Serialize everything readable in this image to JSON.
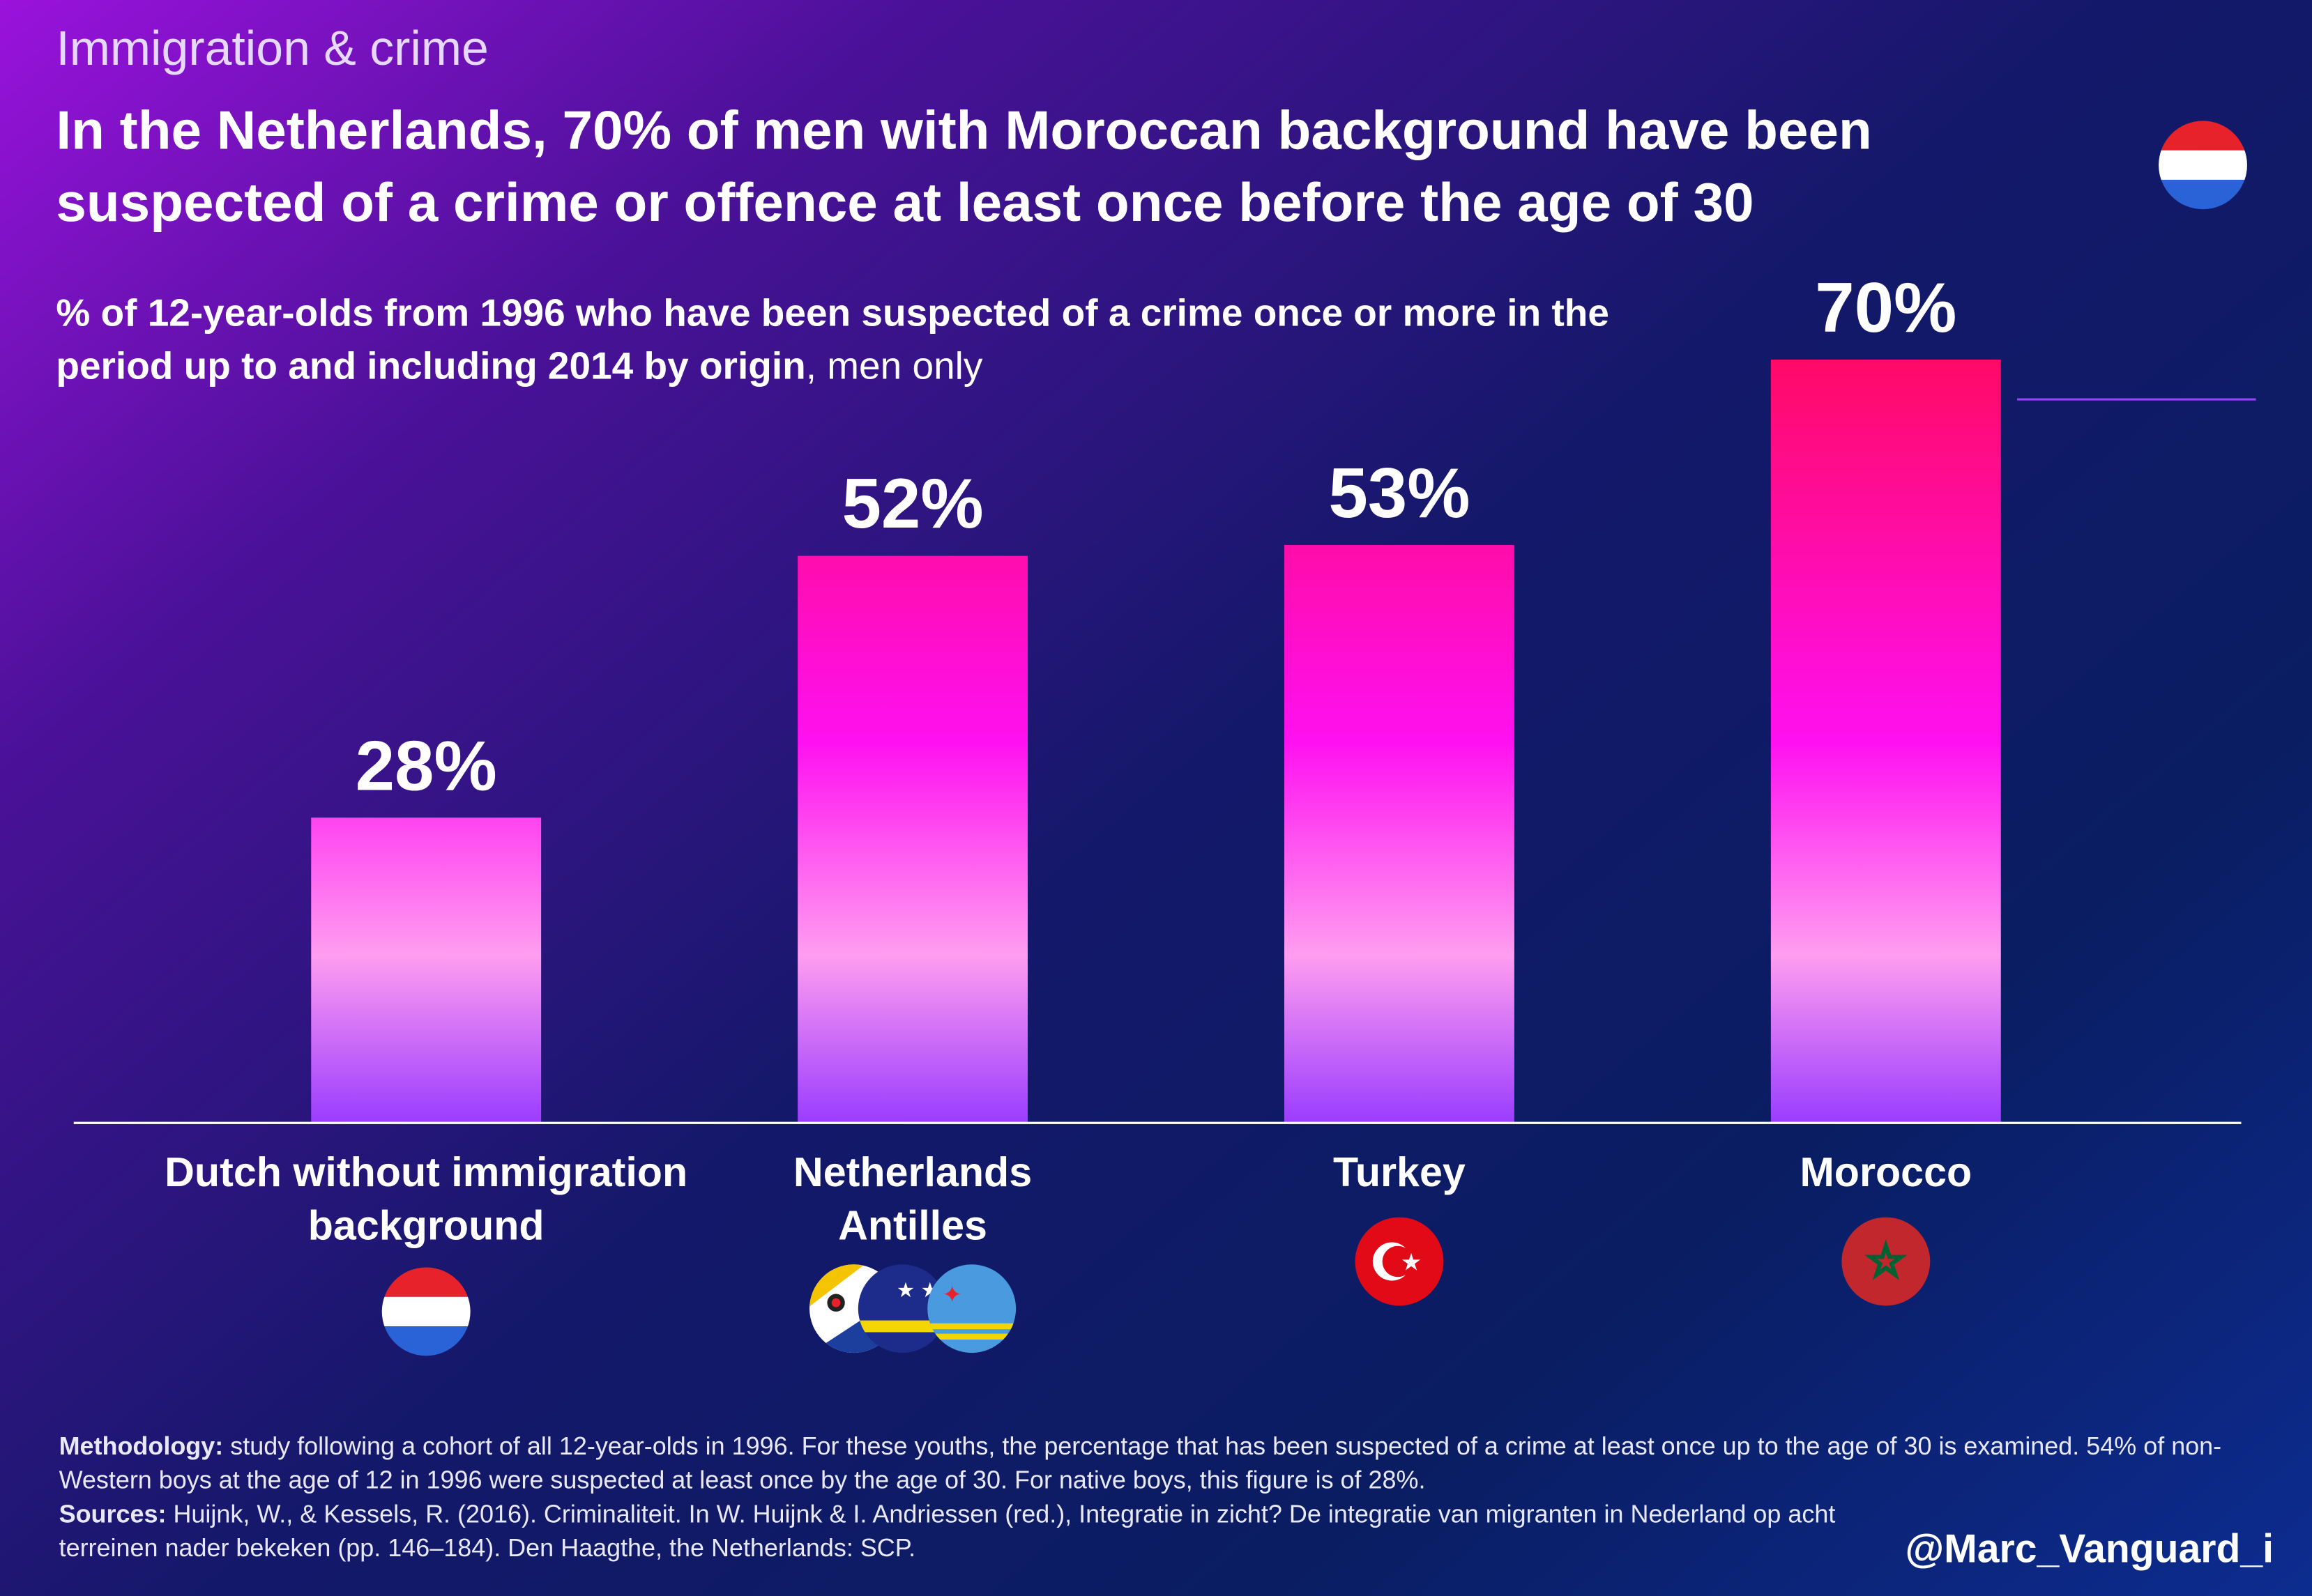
{
  "chart_data": {
    "type": "bar",
    "kicker": "Immigration & crime",
    "title": "In the Netherlands, 70% of men with Moroccan background have been suspected of a crime or offence at least once before the age of 30",
    "subtitle": [
      "% of 12-year-olds from 1996 who have been suspected of a crime once or more in the period up to and including 2014 by origin",
      ", men only"
    ],
    "categories": [
      "Dutch without immigration background",
      "Netherlands Antilles",
      "Turkey",
      "Morocco"
    ],
    "values": [
      28,
      52,
      53,
      70
    ],
    "value_labels": [
      "28%",
      "52%",
      "53%",
      "70%"
    ],
    "methodology": {
      "label": "Methodology:",
      "text": "study following a cohort of all 12-year-olds in 1996. For these youths, the percentage that has been suspected of a crime at least once up to the age of 30 is examined. 54% of non-Western boys at the age of 12 in 1996 were suspected at least once by the age of 30. For native boys, this figure is of 28%."
    },
    "sources": {
      "label": "Sources:",
      "text": "Huijnk, W., & Kessels, R. (2016). Criminaliteit. In W. Huijnk & I. Andriessen (red.), Integratie in zicht? De integratie van migranten in Nederland op acht terreinen nader bekeken (pp. 146–184). Den Haagthe, the Netherlands: SCP."
    },
    "credit": "@Marc_Vanguard_i"
  }
}
